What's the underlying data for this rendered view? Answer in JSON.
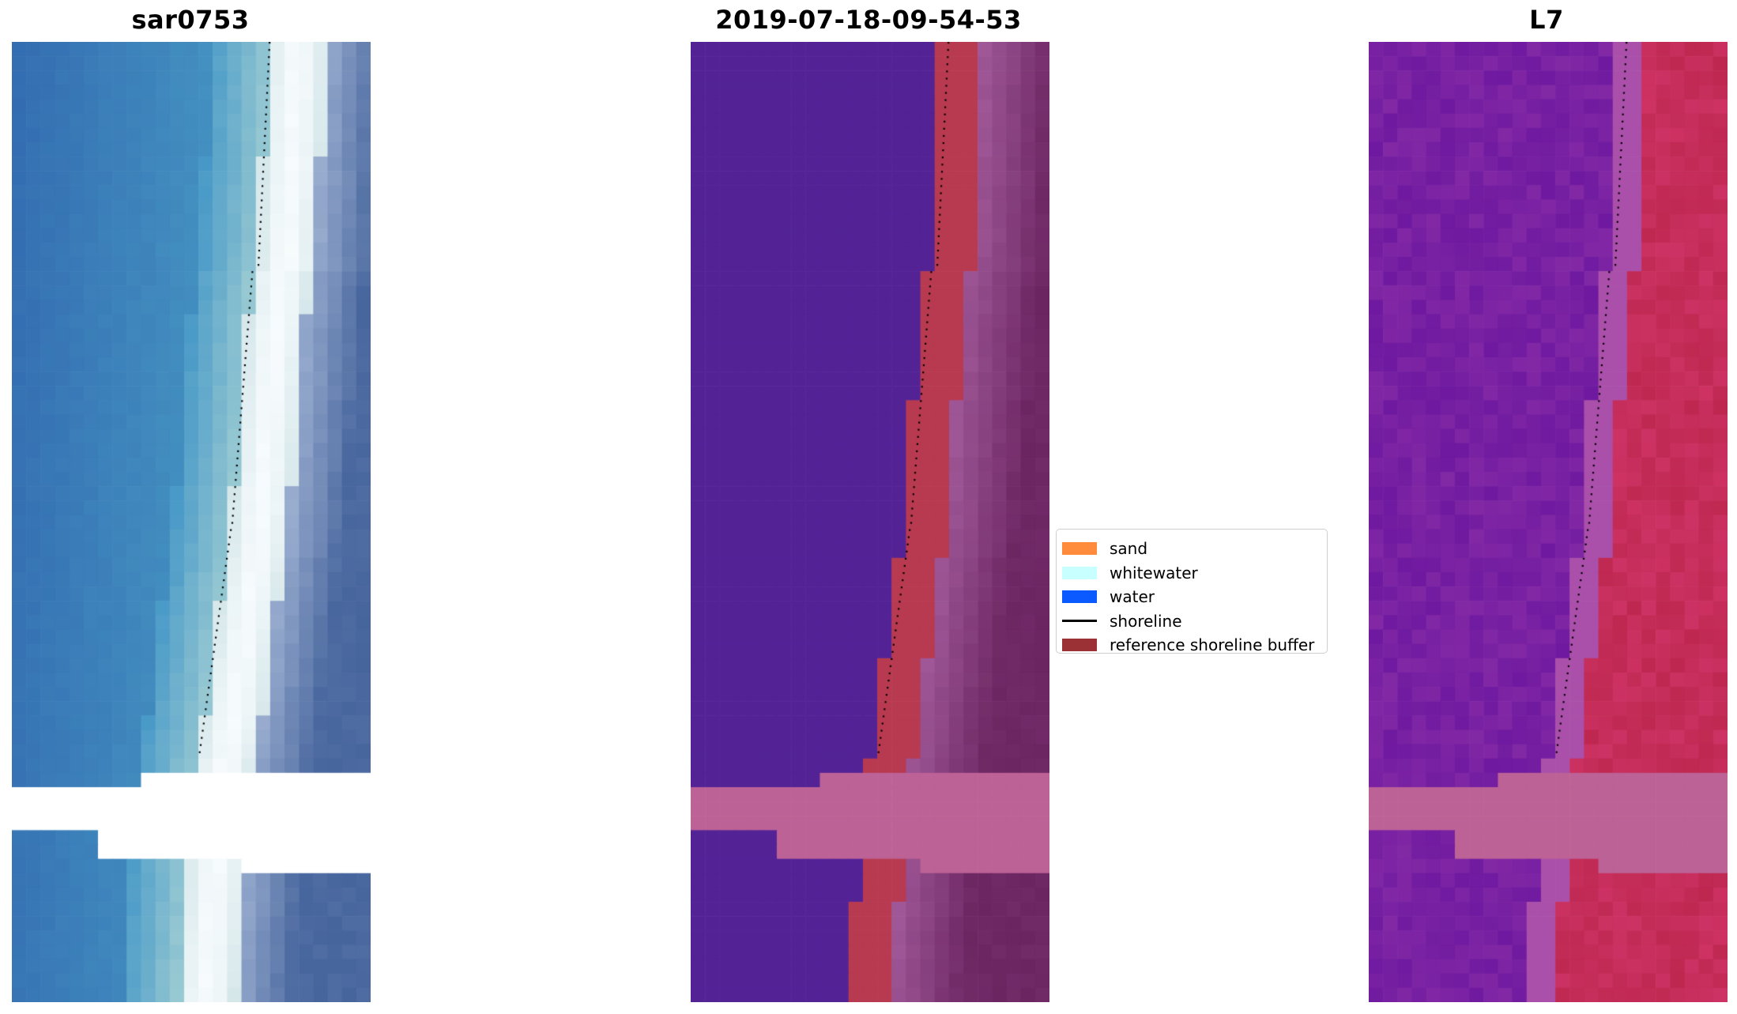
{
  "panels": [
    {
      "title": "sar0753"
    },
    {
      "title": "2019-07-18-09-54-53"
    },
    {
      "title": "L7"
    }
  ],
  "legend": [
    {
      "label": "sand",
      "color": "#ff8c3c"
    },
    {
      "label": "whitewater",
      "color": "#c8ffff"
    },
    {
      "label": "water",
      "color": "#0a5aff"
    },
    {
      "label": "shoreline",
      "color": "#000000"
    },
    {
      "label": "reference shoreline buffer",
      "color": "#9b3035"
    }
  ]
}
